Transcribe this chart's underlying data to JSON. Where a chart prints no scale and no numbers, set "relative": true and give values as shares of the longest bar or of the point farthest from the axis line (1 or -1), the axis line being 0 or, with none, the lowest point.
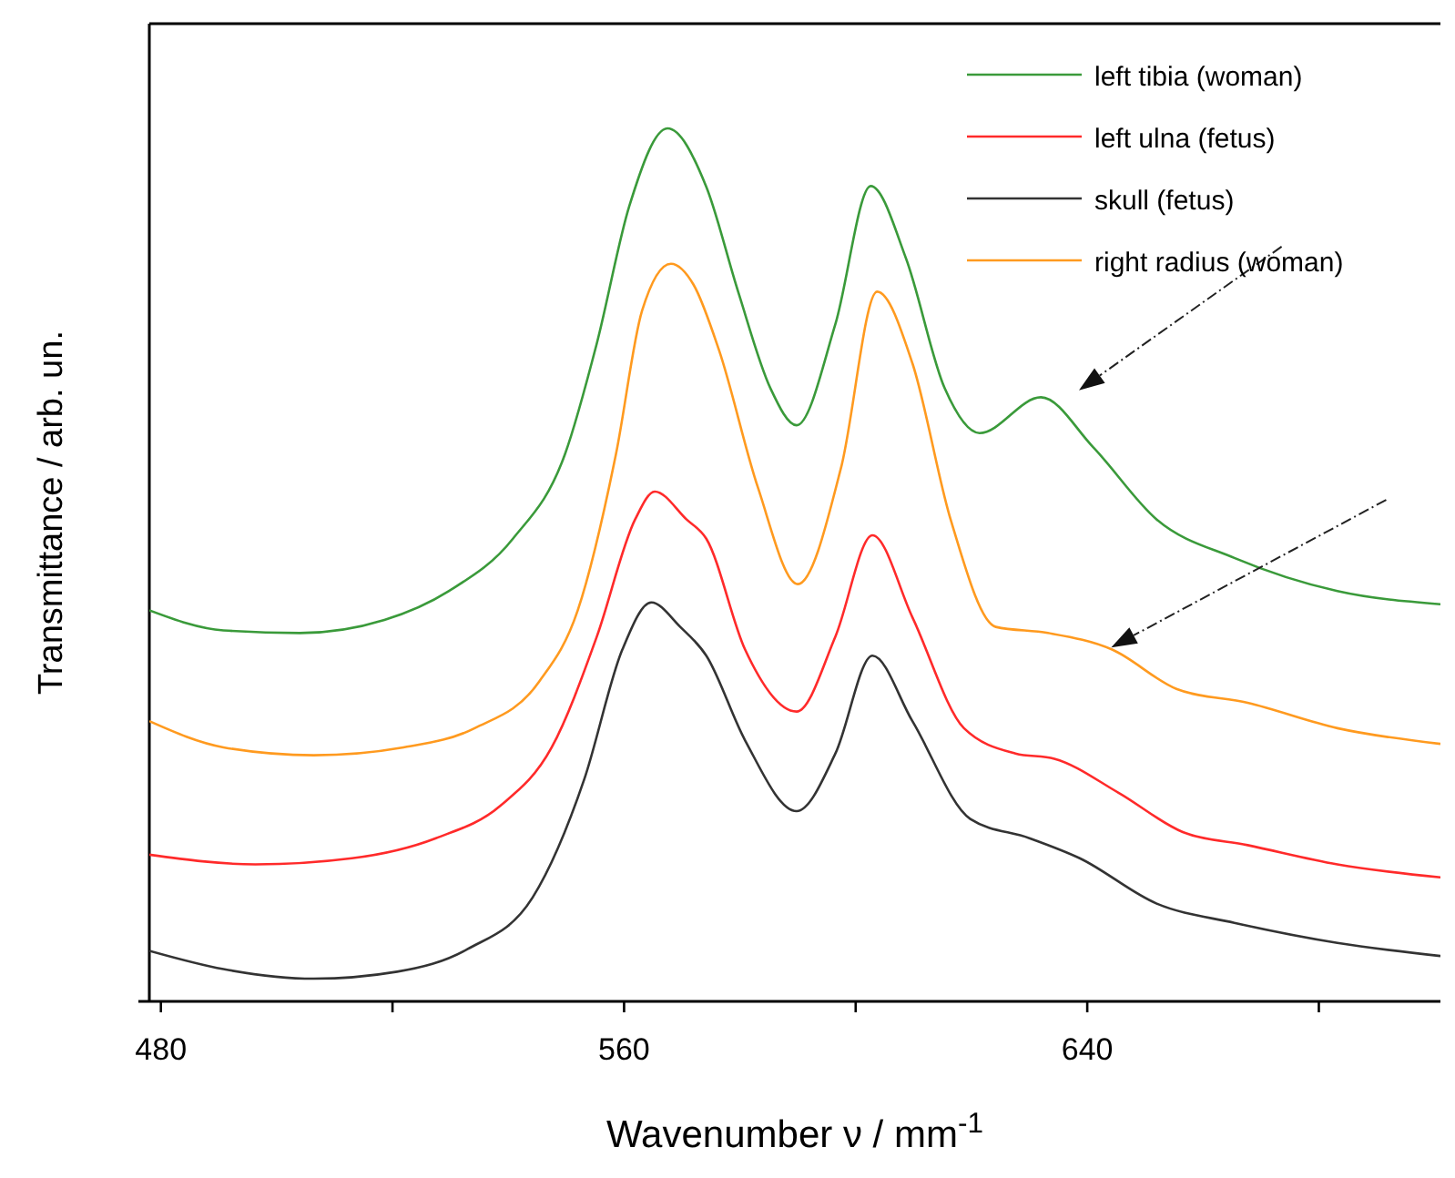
{
  "chart_data": {
    "type": "line",
    "xlabel": "Wavenumber ν / mm$^{-1}$",
    "ylabel": "Transmittance / arb. un.",
    "relative": true,
    "xlim": [
      478,
      701
    ],
    "xticks": [
      480,
      {
        "value": 520,
        "label": null
      },
      560,
      {
        "value": 600,
        "label": null
      },
      640,
      {
        "value": 680,
        "label": null
      }
    ],
    "legend": "top right",
    "grid": false,
    "marker": "none",
    "line_style": "solid",
    "series": [
      {
        "name": "left tibia (woman)",
        "color": "#3a9a3a",
        "x": [
          478,
          490.8,
          504,
          518.6,
          529.7,
          540.8,
          549.8,
          555.3,
          560.9,
          567.5,
          574.2,
          579.7,
          585.3,
          589.8,
          596.5,
          602.6,
          608.7,
          615.4,
          621.4,
          632,
          641,
          652,
          665.4,
          683.2,
          701
        ],
        "values": [
          0.448,
          0.425,
          0.422,
          0.437,
          0.47,
          0.53,
          0.627,
          0.754,
          0.911,
          1,
          0.933,
          0.813,
          0.702,
          0.66,
          0.776,
          0.934,
          0.851,
          0.702,
          0.651,
          0.692,
          0.635,
          0.552,
          0.508,
          0.47,
          0.455
        ]
      },
      {
        "name": "left ulna (fetus)",
        "color": "#ff2a2a",
        "x": [
          478,
          496.3,
          513,
          527.5,
          538.6,
          547.5,
          555.3,
          561.9,
          565.3,
          570.8,
          574.2,
          580.9,
          589.8,
          596.5,
          602.9,
          609.8,
          618.7,
          627.6,
          634.3,
          645.4,
          656.5,
          667.7,
          683.2,
          701
        ],
        "values": [
          0.168,
          0.157,
          0.164,
          0.187,
          0.224,
          0.291,
          0.418,
          0.552,
          0.584,
          0.552,
          0.53,
          0.403,
          0.332,
          0.418,
          0.534,
          0.44,
          0.313,
          0.284,
          0.278,
          0.239,
          0.194,
          0.179,
          0.157,
          0.142
        ]
      },
      {
        "name": "skull (fetus)",
        "color": "#333333",
        "x": [
          478,
          490.8,
          506.4,
          520.8,
          533,
          544.2,
          553.1,
          559.7,
          564.7,
          569.7,
          574.2,
          580.9,
          589.8,
          596.5,
          602.9,
          609.8,
          619.8,
          630,
          638.7,
          652,
          665.4,
          683.2,
          701
        ],
        "values": [
          0.058,
          0.037,
          0.026,
          0.034,
          0.06,
          0.119,
          0.254,
          0.403,
          0.457,
          0.429,
          0.396,
          0.299,
          0.218,
          0.284,
          0.396,
          0.321,
          0.209,
          0.187,
          0.164,
          0.112,
          0.09,
          0.067,
          0.052
        ]
      },
      {
        "name": "right radius (woman)",
        "color": "#ff9a1f",
        "x": [
          478,
          490.8,
          506.4,
          521.9,
          534.2,
          545.3,
          552,
          558.6,
          563.1,
          568.1,
          572,
          576.4,
          583.1,
          590,
          597.5,
          603.7,
          609.8,
          616.4,
          624.2,
          633.2,
          644.3,
          655.4,
          667.7,
          683.2,
          701
        ],
        "values": [
          0.321,
          0.291,
          0.282,
          0.291,
          0.313,
          0.366,
          0.448,
          0.627,
          0.791,
          0.845,
          0.821,
          0.746,
          0.589,
          0.478,
          0.612,
          0.813,
          0.731,
          0.552,
          0.429,
          0.422,
          0.403,
          0.358,
          0.342,
          0.313,
          0.295
        ]
      }
    ]
  }
}
